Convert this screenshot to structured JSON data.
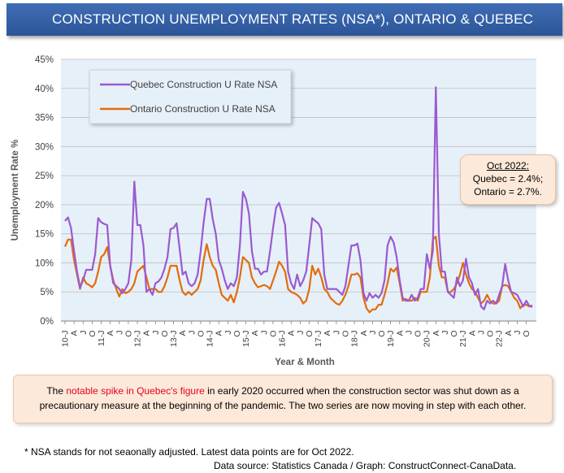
{
  "header": {
    "title": "CONSTRUCTION UNEMPLOYMENT RATES (NSA*),  ONTARIO & QUEBEC"
  },
  "callout": {
    "title": "Oct 2022:",
    "quebec": "Quebec = 2.4%;",
    "ontario": "Ontario = 2.7%."
  },
  "note": {
    "before": "The ",
    "highlight": "notable spike in Quebec's figure",
    "after": " in early 2020 occurred when the construction sector was shut down as a precautionary measure at the beginning of the pandemic. The two series are now moving in step with each other."
  },
  "footnote": "* NSA stands for not seaonally adjusted. Latest data points are for Oct 2022.",
  "source": "Data source: Statistics Canada / Graph: ConstructConnect-CanaData.",
  "colors": {
    "quebec": "#9b59d0",
    "ontario": "#e36c0a",
    "plot_bg": "#e6f0f9",
    "grid": "#bfbfbf"
  },
  "chart_data": {
    "type": "line",
    "title": "",
    "xlabel": "Year & Month",
    "ylabel": "Unemployment Rate %",
    "ylim": [
      0,
      45
    ],
    "yticks": [
      "0%",
      "5%",
      "10%",
      "15%",
      "20%",
      "25%",
      "30%",
      "35%",
      "40%",
      "45%"
    ],
    "ytick_values": [
      0,
      5,
      10,
      15,
      20,
      25,
      30,
      35,
      40,
      45
    ],
    "grid": true,
    "legend": "top-left",
    "x_tick_labels": [
      "10-J",
      "A",
      "J",
      "O",
      "11-J",
      "A",
      "J",
      "O",
      "12-J",
      "A",
      "J",
      "O",
      "13-J",
      "A",
      "J",
      "O",
      "14-J",
      "A",
      "J",
      "O",
      "15-J",
      "A",
      "J",
      "O",
      "16-J",
      "A",
      "J",
      "O",
      "17-J",
      "A",
      "J",
      "O",
      "18-J",
      "A",
      "J",
      "O",
      "19-J",
      "A",
      "J",
      "O",
      "20-J",
      "A",
      "J",
      "O",
      "21-J",
      "A",
      "J",
      "O",
      "22-J",
      "A",
      "J",
      "O"
    ],
    "series": [
      {
        "name": "Quebec Construction U Rate NSA",
        "values": [
          17.2,
          17.8,
          16.0,
          12.0,
          8.5,
          5.8,
          7.0,
          8.8,
          8.8,
          8.8,
          11.5,
          17.7,
          17.0,
          16.7,
          16.5,
          9.5,
          6.5,
          6.0,
          5.5,
          4.8,
          5.5,
          6.5,
          10.5,
          24.0,
          16.5,
          16.5,
          13.0,
          5.0,
          5.5,
          4.5,
          6.5,
          6.8,
          7.5,
          9.0,
          11.0,
          15.8,
          16.0,
          16.8,
          12.5,
          8.0,
          8.5,
          6.5,
          6.0,
          6.5,
          8.0,
          12.0,
          17.0,
          21.0,
          21.0,
          17.5,
          15.0,
          10.5,
          9.0,
          7.0,
          5.5,
          6.5,
          6.0,
          7.5,
          13.0,
          22.2,
          21.0,
          18.5,
          12.0,
          9.0,
          9.0,
          8.0,
          8.5,
          8.5,
          12.0,
          16.0,
          19.5,
          20.3,
          18.5,
          16.5,
          8.5,
          6.5,
          5.5,
          8.0,
          6.0,
          7.0,
          8.5,
          13.0,
          17.7,
          17.2,
          16.8,
          15.8,
          8.0,
          5.5,
          5.5,
          5.5,
          5.5,
          5.0,
          4.5,
          6.0,
          9.5,
          13.0,
          13.0,
          13.3,
          10.5,
          4.8,
          3.5,
          4.8,
          4.0,
          4.5,
          4.0,
          4.8,
          7.0,
          13.0,
          14.5,
          13.5,
          11.0,
          7.0,
          4.0,
          3.5,
          3.5,
          4.5,
          3.5,
          4.0,
          5.5,
          5.5,
          11.5,
          9.0,
          12.0,
          40.2,
          15.0,
          8.5,
          8.5,
          5.0,
          4.5,
          4.0,
          7.5,
          6.0,
          7.0,
          10.7,
          7.5,
          6.5,
          4.5,
          5.5,
          2.5,
          2.0,
          3.5,
          3.0,
          3.5,
          3.0,
          4.5,
          6.0,
          9.8,
          7.0,
          5.0,
          4.8,
          4.5,
          3.5,
          2.5,
          3.5,
          2.6,
          2.4
        ]
      },
      {
        "name": "Ontario Construction U Rate NSA",
        "values": [
          12.8,
          14.0,
          14.0,
          10.5,
          8.0,
          5.5,
          7.5,
          6.5,
          6.2,
          5.8,
          6.5,
          8.5,
          11.0,
          11.5,
          12.7,
          9.5,
          7.0,
          5.5,
          4.2,
          5.5,
          4.8,
          5.0,
          5.5,
          6.5,
          8.5,
          9.0,
          9.5,
          7.5,
          5.5,
          5.5,
          5.5,
          5.0,
          5.0,
          6.0,
          7.5,
          9.5,
          9.5,
          9.5,
          7.0,
          5.0,
          4.5,
          5.0,
          4.5,
          5.0,
          5.5,
          7.0,
          10.5,
          13.2,
          11.0,
          9.5,
          8.8,
          6.5,
          4.5,
          4.0,
          3.5,
          4.5,
          3.2,
          5.0,
          7.5,
          11.0,
          10.5,
          10.0,
          7.5,
          6.5,
          5.8,
          6.0,
          6.2,
          6.0,
          5.5,
          7.0,
          8.5,
          10.2,
          9.5,
          8.5,
          5.5,
          5.0,
          4.8,
          4.5,
          4.0,
          3.0,
          3.5,
          5.5,
          9.5,
          8.0,
          9.0,
          7.5,
          5.5,
          5.0,
          4.0,
          3.5,
          3.0,
          2.8,
          3.5,
          4.5,
          6.0,
          8.0,
          8.0,
          8.2,
          7.5,
          4.0,
          2.2,
          1.5,
          2.0,
          2.0,
          2.8,
          2.8,
          4.5,
          6.5,
          9.0,
          8.5,
          9.2,
          6.5,
          3.5,
          3.8,
          3.5,
          3.5,
          4.0,
          3.5,
          5.0,
          5.0,
          5.0,
          7.5,
          14.0,
          14.5,
          9.5,
          7.5,
          7.5,
          5.0,
          5.0,
          5.5,
          6.5,
          8.0,
          10.0,
          8.0,
          6.5,
          5.5,
          5.0,
          4.0,
          3.0,
          3.5,
          4.5,
          3.5,
          3.0,
          3.0,
          3.5,
          6.0,
          6.2,
          6.0,
          5.0,
          4.0,
          3.5,
          2.2,
          2.8,
          2.8,
          2.5,
          2.7
        ]
      }
    ]
  }
}
